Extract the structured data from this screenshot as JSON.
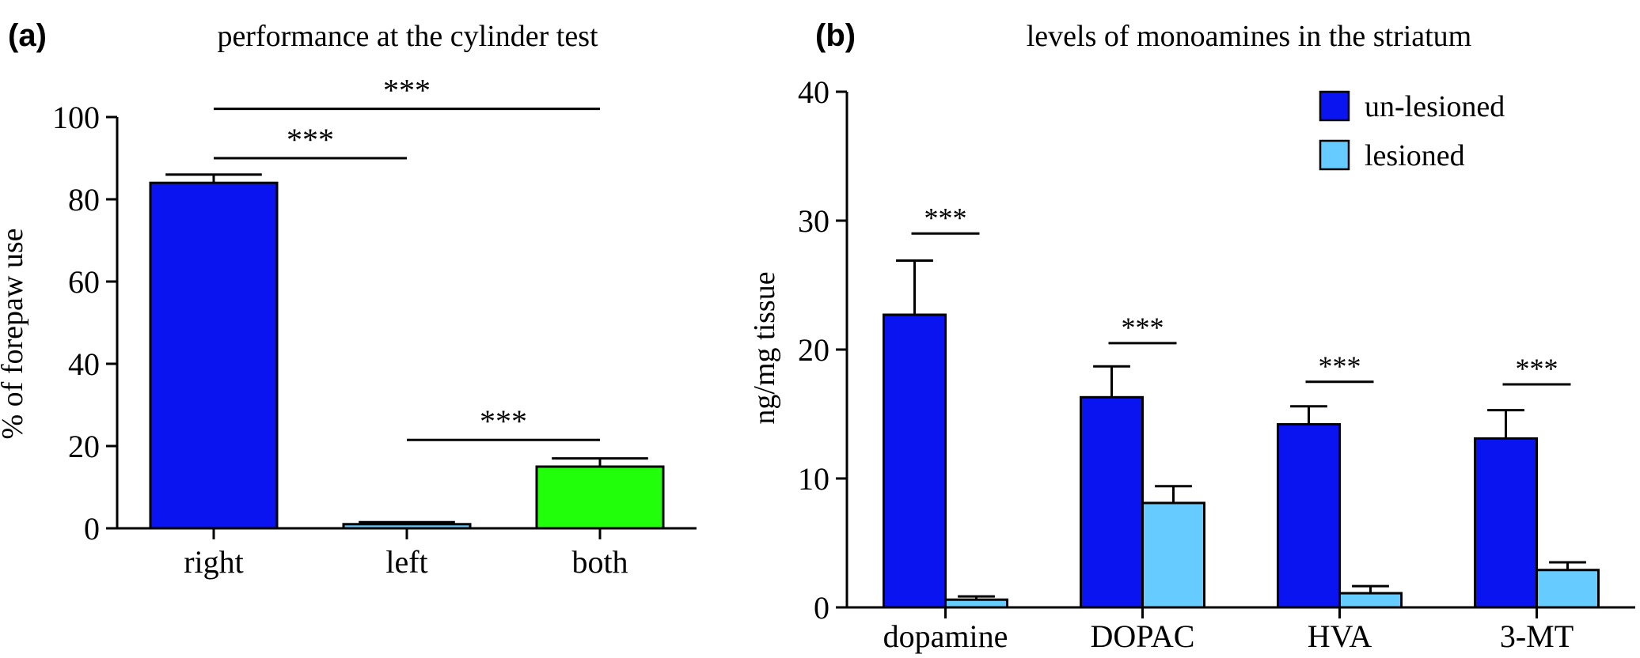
{
  "chart_data": [
    {
      "panel": "(a)",
      "type": "bar",
      "title": "performance at the cylinder test",
      "xlabel": "",
      "ylabel": "% of forepaw use",
      "ylim": [
        0,
        100
      ],
      "yticks": [
        "0",
        "20",
        "40",
        "60",
        "80",
        "100"
      ],
      "grid": false,
      "categories": [
        "right",
        "left",
        "both"
      ],
      "values": [
        84,
        1,
        15
      ],
      "errors": [
        2,
        0.5,
        2
      ],
      "colors": [
        "#0a14f0",
        "#66ccff",
        "#22ff0a"
      ],
      "annotations": [
        {
          "from": "right",
          "to": "both",
          "text": "***",
          "y": 102
        },
        {
          "from": "right",
          "to": "left",
          "text": "***",
          "y": 90
        },
        {
          "from": "left",
          "to": "both",
          "text": "***",
          "y": 21.5
        }
      ]
    },
    {
      "panel": "(b)",
      "type": "bar",
      "title": "levels of monoamines in the striatum",
      "xlabel": "",
      "ylabel": "ng/mg tissue",
      "ylim": [
        0,
        40
      ],
      "yticks": [
        "0",
        "10",
        "20",
        "30",
        "40"
      ],
      "grid": false,
      "legend_position": "top-right",
      "categories": [
        "dopamine",
        "DOPAC",
        "HVA",
        "3-MT"
      ],
      "series": [
        {
          "name": "un-lesioned",
          "color": "#0a14f0",
          "values": [
            22.7,
            16.3,
            14.2,
            13.1
          ],
          "errors": [
            4.2,
            2.4,
            1.4,
            2.2
          ]
        },
        {
          "name": "lesioned",
          "color": "#66ccff",
          "values": [
            0.6,
            8.1,
            1.1,
            2.9
          ],
          "errors": [
            0.25,
            1.3,
            0.55,
            0.6
          ]
        }
      ],
      "annotations": [
        {
          "category": "dopamine",
          "text": "***",
          "y": 29
        },
        {
          "category": "DOPAC",
          "text": "***",
          "y": 20.5
        },
        {
          "category": "HVA",
          "text": "***",
          "y": 17.5
        },
        {
          "category": "3-MT",
          "text": "***",
          "y": 17.3
        }
      ]
    }
  ]
}
